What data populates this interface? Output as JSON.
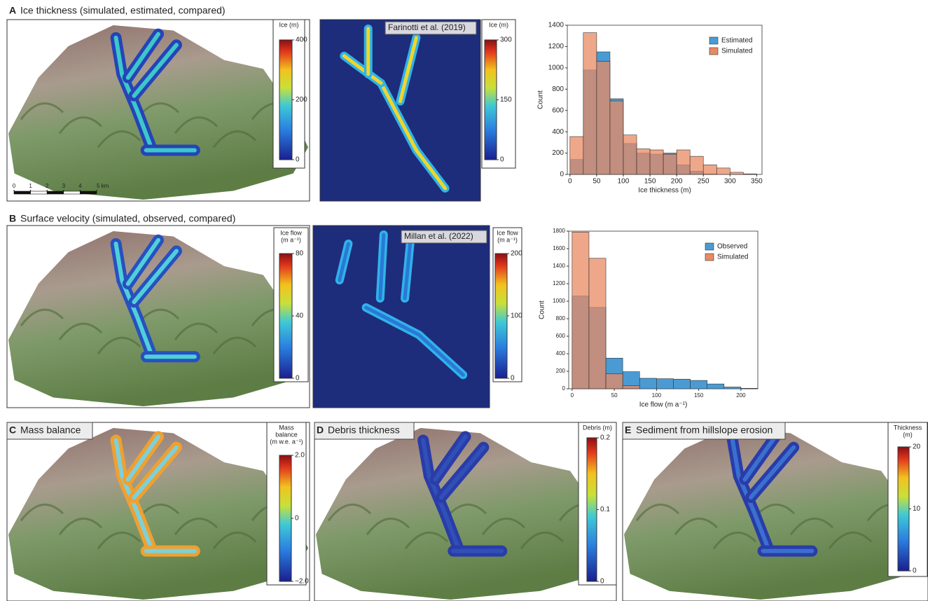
{
  "panels": [
    {
      "letter": "A",
      "title": "Ice thickness (simulated, estimated, compared)"
    },
    {
      "letter": "B",
      "title": "Surface velocity (simulated, observed, compared)"
    },
    {
      "letter": "C",
      "title": "Mass balance"
    },
    {
      "letter": "D",
      "title": "Debris thickness"
    },
    {
      "letter": "E",
      "title": "Sediment from hillslope erosion"
    }
  ],
  "sources": [
    "Farinotti et al. (2019)",
    "Millan et al. (2022)"
  ],
  "scale_bar": {
    "ticks": [
      0,
      1,
      2,
      3,
      4,
      {
        "value": 5,
        "label": "5 km"
      }
    ]
  },
  "colorbars": [
    {
      "title": [
        "Ice (m)"
      ],
      "ticks": [
        0,
        200,
        400
      ]
    },
    {
      "title": [
        "Ice (m)"
      ],
      "ticks": [
        0,
        150,
        300
      ]
    },
    {
      "title": [
        "Ice flow",
        "(m a⁻¹)"
      ],
      "ticks": [
        0,
        40,
        80
      ]
    },
    {
      "title": [
        "Ice flow",
        "(m a⁻¹)"
      ],
      "ticks": [
        0,
        100,
        200
      ]
    },
    {
      "title": [
        "Mass",
        "balance",
        "(m w.e. a⁻¹)"
      ],
      "ticks": [
        {
          "value": -2,
          "label": "−2.0"
        },
        0,
        {
          "value": 2,
          "label": "2.0"
        }
      ]
    },
    {
      "title": [
        "Debris (m)"
      ],
      "ticks": [
        0,
        0.1,
        0.2
      ]
    },
    {
      "title": [
        "Thickness",
        "(m)"
      ],
      "ticks": [
        0,
        10,
        20
      ]
    }
  ],
  "chart_data": [
    {
      "type": "histogram",
      "x_label": "Ice thickness (m)",
      "y_label": "Count",
      "bins": [
        0,
        25,
        50,
        75,
        100,
        125,
        150,
        175,
        200,
        225,
        250,
        275,
        300,
        325,
        350
      ],
      "series": [
        {
          "name": "Estimated",
          "color": "#4a9bd4",
          "values": [
            140,
            980,
            1150,
            710,
            290,
            200,
            190,
            200,
            90,
            30,
            5,
            0,
            0,
            0
          ]
        },
        {
          "name": "Simulated",
          "color": "#e98a63",
          "values": [
            355,
            1330,
            1060,
            690,
            370,
            240,
            230,
            190,
            230,
            170,
            90,
            60,
            20,
            5
          ]
        }
      ],
      "xlim": [
        -5,
        360
      ],
      "ylim": [
        0,
        1400
      ],
      "xticks": [
        0,
        50,
        100,
        150,
        200,
        250,
        300,
        350
      ],
      "yticks": [
        0,
        200,
        400,
        600,
        800,
        1000,
        1200,
        1400
      ],
      "legend": "upper right"
    },
    {
      "type": "histogram",
      "x_label": "Ice flow (m a⁻¹)",
      "y_label": "Count",
      "bins": [
        0,
        20,
        40,
        60,
        80,
        100,
        120,
        140,
        160,
        180,
        200,
        220
      ],
      "series": [
        {
          "name": "Observed",
          "color": "#4a9bd4",
          "values": [
            1060,
            930,
            350,
            195,
            120,
            115,
            110,
            95,
            55,
            20,
            5
          ]
        },
        {
          "name": "Simulated",
          "color": "#e98a63",
          "values": [
            1790,
            1490,
            170,
            35,
            0,
            0,
            0,
            0,
            0,
            0,
            0
          ]
        }
      ],
      "xlim": [
        -4,
        220
      ],
      "ylim": [
        0,
        1800
      ],
      "xticks": [
        0,
        50,
        100,
        150,
        200
      ],
      "yticks": [
        0,
        200,
        400,
        600,
        800,
        1000,
        1200,
        1400,
        1600,
        1800
      ],
      "legend": "upper right"
    }
  ]
}
